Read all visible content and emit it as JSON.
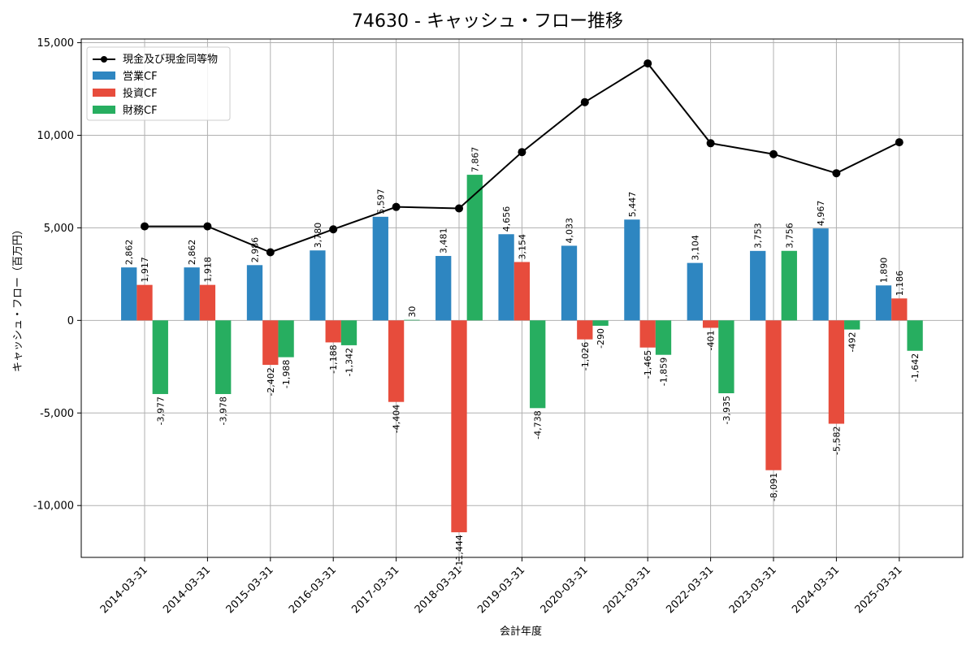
{
  "chart_data": {
    "type": "bar",
    "title": "74630 - キャッシュ・フロー推移",
    "xlabel": "会計年度",
    "ylabel": "キャッシュ・フロー（百万円）",
    "categories": [
      "2014-03-31",
      "2014-03-31",
      "2015-03-31",
      "2016-03-31",
      "2017-03-31",
      "2018-03-31",
      "2019-03-31",
      "2020-03-31",
      "2021-03-31",
      "2022-03-31",
      "2023-03-31",
      "2024-03-31",
      "2025-03-31"
    ],
    "ylim": [
      -12800,
      15200
    ],
    "yticks": [
      -10000,
      -5000,
      0,
      5000,
      10000,
      15000
    ],
    "ytick_labels": [
      "-10,000",
      "-5,000",
      "0",
      "5,000",
      "10,000",
      "15,000"
    ],
    "grid": true,
    "legend_position": "top-left",
    "series": [
      {
        "name": "営業CF",
        "kind": "bar",
        "color": "#2e86c1",
        "values": [
          2862,
          2862,
          2986,
          3780,
          5597,
          3481,
          4656,
          4033,
          5447,
          3104,
          3753,
          4967,
          1890
        ],
        "labels": [
          "2,862",
          "2,862",
          "2,986",
          "3,780",
          "5,597",
          "3,481",
          "4,656",
          "4,033",
          "5,447",
          "3,104",
          "3,753",
          "4,967",
          "1,890"
        ]
      },
      {
        "name": "投資CF",
        "kind": "bar",
        "color": "#e74c3c",
        "values": [
          1917,
          1918,
          -2402,
          -1188,
          -4404,
          -11444,
          3154,
          -1026,
          -1465,
          -401,
          -8091,
          -5582,
          1186
        ],
        "labels": [
          "1,917",
          "1,918",
          "-2,402",
          "-1,188",
          "-4,404",
          "-11,444",
          "3,154",
          "-1,026",
          "-1,465",
          "-401",
          "-8,091",
          "-5,582",
          "1,186"
        ]
      },
      {
        "name": "財務CF",
        "kind": "bar",
        "color": "#27ae60",
        "values": [
          -3977,
          -3978,
          -1988,
          -1342,
          30,
          7867,
          -4738,
          -290,
          -1859,
          -3935,
          3756,
          -492,
          -1642
        ],
        "labels": [
          "-3,977",
          "-3,978",
          "-1,988",
          "-1,342",
          "30",
          "7,867",
          "-4,738",
          "-290",
          "-1,859",
          "-3,935",
          "3,756",
          "-492",
          "-1,642"
        ]
      },
      {
        "name": "現金及び現金同等物",
        "kind": "line",
        "color": "#000000",
        "values": [
          5080,
          5080,
          3680,
          4920,
          6130,
          6050,
          9090,
          11790,
          13880,
          9570,
          8980,
          7950,
          9620
        ]
      }
    ]
  }
}
